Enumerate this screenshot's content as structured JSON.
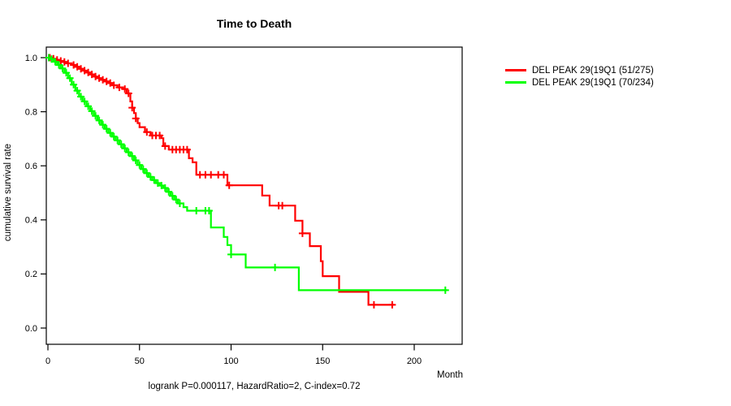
{
  "chart_data": {
    "type": "line",
    "chart_style": "kaplan-meier-step-survival",
    "title": "Time to Death",
    "xlabel": "Month",
    "ylabel": "cumulative survival rate",
    "annotation": "logrank P=0.000117, HazardRatio=2, C-index=0.72",
    "x_tick_labels": [
      "0",
      "50",
      "100",
      "150",
      "200"
    ],
    "x_tick_values": [
      0,
      50,
      100,
      150,
      200
    ],
    "y_tick_labels": [
      "0.0",
      "0.2",
      "0.4",
      "0.6",
      "0.8",
      "1.0"
    ],
    "y_tick_values": [
      0,
      0.2,
      0.4,
      0.6,
      0.8,
      1.0
    ],
    "xlim": [
      0,
      226
    ],
    "ylim": [
      -0.06,
      1.04
    ],
    "grid": false,
    "legend_position": "outside-top-right",
    "background_color": "#FFFFFF",
    "axis_color": "#000000",
    "series": [
      {
        "name": "DEL PEAK 29(19Q1 (51/275)",
        "color": "#FF0000",
        "events": "51/275",
        "end_month": 189,
        "steps": [
          [
            0,
            1.0
          ],
          [
            2,
            0.996
          ],
          [
            4,
            0.992
          ],
          [
            6,
            0.988
          ],
          [
            8,
            0.984
          ],
          [
            10,
            0.979
          ],
          [
            13,
            0.973
          ],
          [
            15,
            0.966
          ],
          [
            17,
            0.959
          ],
          [
            19,
            0.952
          ],
          [
            21,
            0.945
          ],
          [
            23,
            0.938
          ],
          [
            25,
            0.93
          ],
          [
            27,
            0.924
          ],
          [
            29,
            0.918
          ],
          [
            31,
            0.912
          ],
          [
            33,
            0.906
          ],
          [
            35,
            0.898
          ],
          [
            38,
            0.89
          ],
          [
            41,
            0.884
          ],
          [
            43,
            0.868
          ],
          [
            45,
            0.838
          ],
          [
            46,
            0.815
          ],
          [
            47,
            0.795
          ],
          [
            48,
            0.775
          ],
          [
            49,
            0.758
          ],
          [
            50,
            0.743
          ],
          [
            53,
            0.725
          ],
          [
            56,
            0.712
          ],
          [
            62,
            0.702
          ],
          [
            63,
            0.673
          ],
          [
            66,
            0.66
          ],
          [
            77,
            0.628
          ],
          [
            79,
            0.613
          ],
          [
            81,
            0.567
          ],
          [
            98,
            0.528
          ],
          [
            117,
            0.49
          ],
          [
            121,
            0.453
          ],
          [
            135,
            0.397
          ],
          [
            139,
            0.35
          ],
          [
            143,
            0.303
          ],
          [
            149,
            0.247
          ],
          [
            150,
            0.192
          ],
          [
            159,
            0.134
          ],
          [
            175,
            0.086
          ]
        ],
        "censors": [
          [
            1,
            1.0
          ],
          [
            3,
            0.996
          ],
          [
            5,
            0.992
          ],
          [
            7,
            0.988
          ],
          [
            9,
            0.984
          ],
          [
            11,
            0.979
          ],
          [
            14,
            0.973
          ],
          [
            16,
            0.966
          ],
          [
            18,
            0.959
          ],
          [
            20,
            0.952
          ],
          [
            22,
            0.945
          ],
          [
            24,
            0.938
          ],
          [
            26,
            0.93
          ],
          [
            28,
            0.924
          ],
          [
            30,
            0.918
          ],
          [
            32,
            0.912
          ],
          [
            34,
            0.906
          ],
          [
            36,
            0.898
          ],
          [
            39,
            0.89
          ],
          [
            42,
            0.884
          ],
          [
            44,
            0.868
          ],
          [
            46,
            0.815
          ],
          [
            48,
            0.775
          ],
          [
            54,
            0.725
          ],
          [
            57,
            0.712
          ],
          [
            59,
            0.712
          ],
          [
            61,
            0.712
          ],
          [
            64,
            0.673
          ],
          [
            68,
            0.66
          ],
          [
            70,
            0.66
          ],
          [
            72,
            0.66
          ],
          [
            74,
            0.66
          ],
          [
            76,
            0.66
          ],
          [
            83,
            0.567
          ],
          [
            86,
            0.567
          ],
          [
            89,
            0.567
          ],
          [
            93,
            0.567
          ],
          [
            96,
            0.567
          ],
          [
            99,
            0.528
          ],
          [
            126,
            0.453
          ],
          [
            128,
            0.453
          ],
          [
            139,
            0.35
          ],
          [
            178,
            0.086
          ],
          [
            188,
            0.086
          ]
        ]
      },
      {
        "name": "DEL PEAK 29(19Q1 (70/234)",
        "color": "#00FF00",
        "events": "70/234",
        "end_month": 218,
        "steps": [
          [
            0,
            1.0
          ],
          [
            1,
            0.995
          ],
          [
            3,
            0.985
          ],
          [
            5,
            0.973
          ],
          [
            7,
            0.96
          ],
          [
            9,
            0.944
          ],
          [
            11,
            0.924
          ],
          [
            13,
            0.9
          ],
          [
            15,
            0.878
          ],
          [
            17,
            0.856
          ],
          [
            19,
            0.838
          ],
          [
            21,
            0.82
          ],
          [
            23,
            0.802
          ],
          [
            25,
            0.785
          ],
          [
            27,
            0.768
          ],
          [
            29,
            0.752
          ],
          [
            31,
            0.737
          ],
          [
            33,
            0.722
          ],
          [
            35,
            0.708
          ],
          [
            37,
            0.694
          ],
          [
            39,
            0.68
          ],
          [
            41,
            0.665
          ],
          [
            43,
            0.65
          ],
          [
            45,
            0.636
          ],
          [
            47,
            0.62
          ],
          [
            49,
            0.603
          ],
          [
            51,
            0.588
          ],
          [
            53,
            0.573
          ],
          [
            55,
            0.559
          ],
          [
            57,
            0.547
          ],
          [
            59,
            0.536
          ],
          [
            61,
            0.527
          ],
          [
            63,
            0.518
          ],
          [
            65,
            0.504
          ],
          [
            67,
            0.489
          ],
          [
            69,
            0.475
          ],
          [
            71,
            0.461
          ],
          [
            74,
            0.447
          ],
          [
            76,
            0.434
          ],
          [
            89,
            0.372
          ],
          [
            96,
            0.337
          ],
          [
            98,
            0.307
          ],
          [
            100,
            0.272
          ],
          [
            108,
            0.224
          ],
          [
            137,
            0.14
          ]
        ],
        "censors": [
          [
            0.5,
            1.0
          ],
          [
            2,
            0.995
          ],
          [
            4,
            0.985
          ],
          [
            6,
            0.973
          ],
          [
            8,
            0.96
          ],
          [
            10,
            0.944
          ],
          [
            12,
            0.924
          ],
          [
            14,
            0.9
          ],
          [
            16,
            0.878
          ],
          [
            18,
            0.856
          ],
          [
            20,
            0.838
          ],
          [
            22,
            0.82
          ],
          [
            24,
            0.802
          ],
          [
            26,
            0.785
          ],
          [
            28,
            0.768
          ],
          [
            30,
            0.752
          ],
          [
            32,
            0.737
          ],
          [
            34,
            0.722
          ],
          [
            36,
            0.708
          ],
          [
            38,
            0.694
          ],
          [
            40,
            0.68
          ],
          [
            42,
            0.665
          ],
          [
            44,
            0.65
          ],
          [
            46,
            0.636
          ],
          [
            48,
            0.62
          ],
          [
            50,
            0.603
          ],
          [
            52,
            0.588
          ],
          [
            54,
            0.573
          ],
          [
            56,
            0.559
          ],
          [
            58,
            0.547
          ],
          [
            60,
            0.536
          ],
          [
            62,
            0.527
          ],
          [
            64,
            0.518
          ],
          [
            66,
            0.504
          ],
          [
            68,
            0.489
          ],
          [
            70,
            0.475
          ],
          [
            72,
            0.461
          ],
          [
            81,
            0.434
          ],
          [
            86,
            0.434
          ],
          [
            88,
            0.434
          ],
          [
            100,
            0.272
          ],
          [
            124,
            0.224
          ],
          [
            217,
            0.14
          ]
        ]
      }
    ]
  }
}
